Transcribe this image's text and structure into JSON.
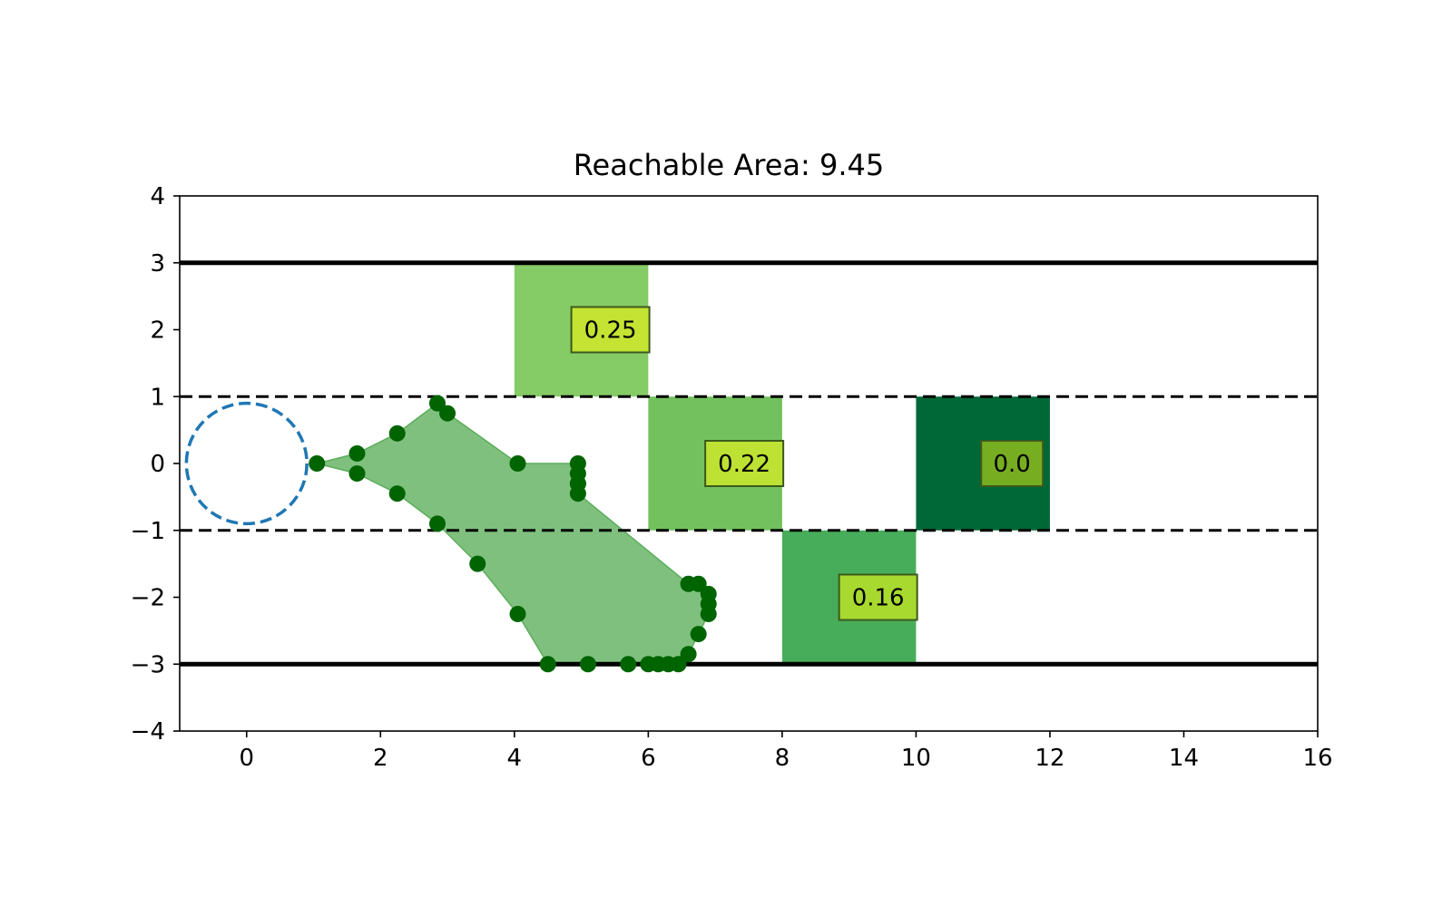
{
  "chart_data": {
    "type": "scatter",
    "title": "Reachable Area: 9.45",
    "xlabel": "",
    "ylabel": "",
    "xlim": [
      -1,
      16
    ],
    "ylim": [
      -4,
      4
    ],
    "xticks": [
      "0",
      "2",
      "4",
      "6",
      "8",
      "10",
      "12",
      "14",
      "16"
    ],
    "yticks": [
      "4",
      "3",
      "2",
      "1",
      "0",
      "−1",
      "−2",
      "−3",
      "−4"
    ],
    "grid": false,
    "lane_lines": [
      {
        "y": 3,
        "style": "solid"
      },
      {
        "y": 1,
        "style": "dashed"
      },
      {
        "y": -1,
        "style": "dashed"
      },
      {
        "y": -3,
        "style": "solid"
      }
    ],
    "start_circle": {
      "x": 0,
      "y": 0,
      "r": 0.9,
      "color": "#1f77b4"
    },
    "cells": [
      {
        "x0": 4,
        "x1": 6,
        "y0": 1,
        "y1": 3,
        "value": "0.25",
        "fill": "#85cb66",
        "label_fill": "#c4e333"
      },
      {
        "x0": 6,
        "x1": 8,
        "y0": -1,
        "y1": 1,
        "value": "0.22",
        "fill": "#73c15e",
        "label_fill": "#bde234"
      },
      {
        "x0": 8,
        "x1": 10,
        "y0": -3,
        "y1": -1,
        "value": "0.16",
        "fill": "#48ad5a",
        "label_fill": "#a8d92f"
      },
      {
        "x0": 10,
        "x1": 12,
        "y0": -1,
        "y1": 1,
        "value": "0.0",
        "fill": "#006837",
        "label_fill": "#77ad20"
      }
    ],
    "reachable_polygon": {
      "color": "#7fc07f",
      "points": [
        [
          1.05,
          0
        ],
        [
          1.65,
          0.15
        ],
        [
          2.25,
          0.45
        ],
        [
          2.85,
          0.9
        ],
        [
          3.0,
          0.75
        ],
        [
          4.05,
          0
        ],
        [
          4.95,
          0
        ],
        [
          4.95,
          -0.45
        ],
        [
          6.6,
          -1.8
        ],
        [
          6.75,
          -1.8
        ],
        [
          6.9,
          -1.95
        ],
        [
          6.9,
          -2.25
        ],
        [
          6.75,
          -2.55
        ],
        [
          6.6,
          -2.85
        ],
        [
          6.45,
          -3.0
        ],
        [
          4.5,
          -3.0
        ],
        [
          4.05,
          -2.25
        ],
        [
          3.45,
          -1.5
        ],
        [
          2.85,
          -0.9
        ],
        [
          2.25,
          -0.45
        ],
        [
          1.65,
          -0.15
        ]
      ]
    },
    "reachable_points": {
      "color": "#006400",
      "x": [
        1.05,
        1.65,
        1.65,
        2.25,
        2.25,
        2.85,
        2.85,
        3.0,
        3.45,
        4.05,
        4.05,
        4.5,
        4.95,
        4.95,
        4.95,
        4.95,
        4.95,
        5.1,
        5.7,
        6.0,
        6.15,
        6.3,
        6.45,
        6.6,
        6.6,
        6.75,
        6.75,
        6.9,
        6.9,
        6.9
      ],
      "y": [
        0,
        0.15,
        -0.15,
        0.45,
        -0.45,
        0.9,
        -0.9,
        0.75,
        -1.5,
        0,
        -2.25,
        -3.0,
        0,
        -0.15,
        -0.3,
        -0.45,
        -0.3,
        -3.0,
        -3.0,
        -3.0,
        -3.0,
        -3.0,
        -3.0,
        -1.8,
        -2.85,
        -1.8,
        -2.55,
        -1.95,
        -2.1,
        -2.25
      ]
    }
  }
}
